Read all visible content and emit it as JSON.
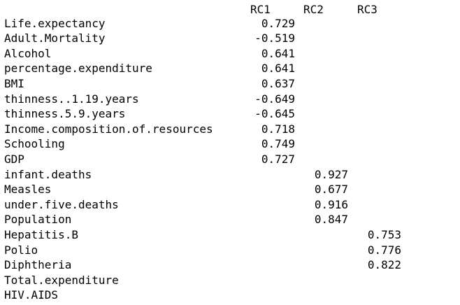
{
  "headers": [
    "RC1",
    "RC2",
    "RC3"
  ],
  "rows": [
    {
      "label": "Life.expectancy",
      "rc1": "0.729",
      "rc2": "",
      "rc3": ""
    },
    {
      "label": "Adult.Mortality",
      "rc1": "-0.519",
      "rc2": "",
      "rc3": ""
    },
    {
      "label": "Alcohol",
      "rc1": "0.641",
      "rc2": "",
      "rc3": ""
    },
    {
      "label": "percentage.expenditure",
      "rc1": "0.641",
      "rc2": "",
      "rc3": ""
    },
    {
      "label": "BMI",
      "rc1": "0.637",
      "rc2": "",
      "rc3": ""
    },
    {
      "label": "thinness..1.19.years",
      "rc1": "-0.649",
      "rc2": "",
      "rc3": ""
    },
    {
      "label": "thinness.5.9.years",
      "rc1": "-0.645",
      "rc2": "",
      "rc3": ""
    },
    {
      "label": "Income.composition.of.resources",
      "rc1": "0.718",
      "rc2": "",
      "rc3": ""
    },
    {
      "label": "Schooling",
      "rc1": "0.749",
      "rc2": "",
      "rc3": ""
    },
    {
      "label": "GDP",
      "rc1": "0.727",
      "rc2": "",
      "rc3": ""
    },
    {
      "label": "infant.deaths",
      "rc1": "",
      "rc2": "0.927",
      "rc3": ""
    },
    {
      "label": "Measles",
      "rc1": "",
      "rc2": "0.677",
      "rc3": ""
    },
    {
      "label": "under.five.deaths",
      "rc1": "",
      "rc2": "0.916",
      "rc3": ""
    },
    {
      "label": "Population",
      "rc1": "",
      "rc2": "0.847",
      "rc3": ""
    },
    {
      "label": "Hepatitis.B",
      "rc1": "",
      "rc2": "",
      "rc3": "0.753"
    },
    {
      "label": "Polio",
      "rc1": "",
      "rc2": "",
      "rc3": "0.776"
    },
    {
      "label": "Diphtheria",
      "rc1": "",
      "rc2": "",
      "rc3": "0.822"
    },
    {
      "label": "Total.expenditure",
      "rc1": "",
      "rc2": "",
      "rc3": ""
    },
    {
      "label": "HIV.AIDS",
      "rc1": "",
      "rc2": "",
      "rc3": ""
    }
  ]
}
